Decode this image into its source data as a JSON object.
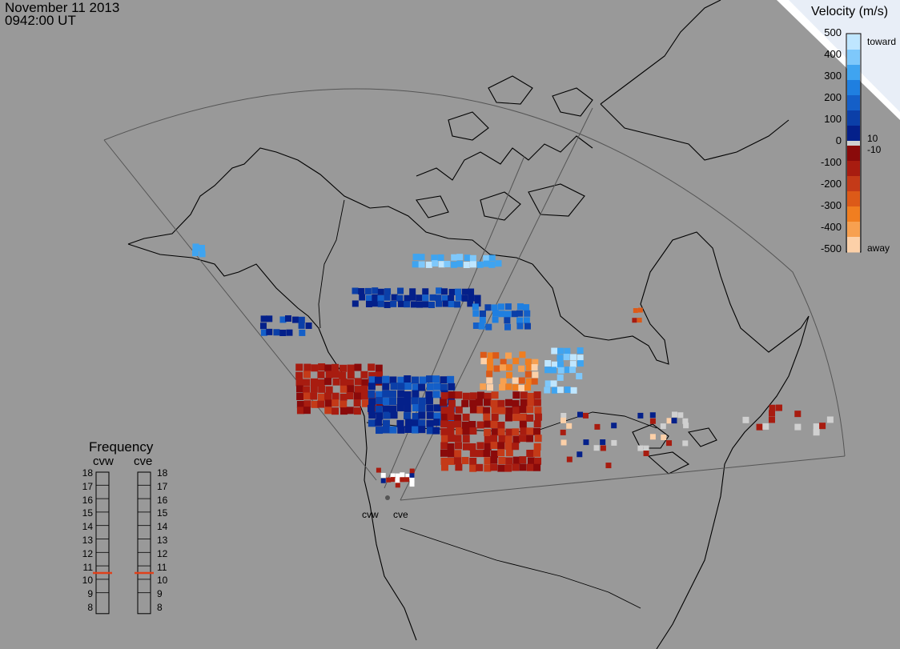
{
  "header": {
    "date": "November 11 2013",
    "time": "0942:00 UT"
  },
  "colorbar": {
    "title": "Velocity (m/s)",
    "ticks": [
      "500",
      "400",
      "300",
      "200",
      "100",
      "0",
      "-100",
      "-200",
      "-300",
      "-400",
      "-500"
    ],
    "inner_labels": {
      "toward": "toward",
      "pos10": "10",
      "neg10": "-10",
      "away": "away"
    },
    "toward_colors": [
      "#bfe6ff",
      "#7ec8fb",
      "#3fa4f0",
      "#1f7fe0",
      "#145fc8",
      "#0b3fa8",
      "#04208a"
    ],
    "away_colors": [
      "#8a0a0a",
      "#a81c10",
      "#c43a18",
      "#dc5a18",
      "#f07e20",
      "#f7a050",
      "#fcd0a8"
    ],
    "zero_color": "#d0d0d0"
  },
  "frequency": {
    "title": "Frequency",
    "radars": [
      "cvw",
      "cve"
    ],
    "levels": [
      "18",
      "17",
      "16",
      "15",
      "14",
      "13",
      "12",
      "11",
      "10",
      "9",
      "8"
    ],
    "current_mhz": {
      "cvw": 10.5,
      "cve": 10.5
    },
    "marker_color": "#e0401a"
  },
  "sites": {
    "west": "cvw",
    "east": "cve"
  },
  "map": {
    "ocean_color": "#999999",
    "coast_color": "#000000",
    "fov_color": "#555555"
  }
}
